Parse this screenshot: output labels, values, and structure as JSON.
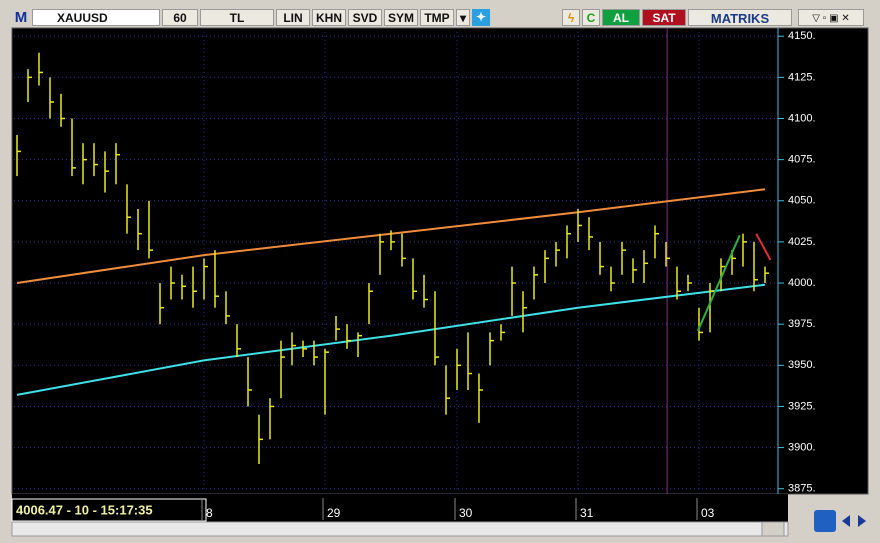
{
  "toolbar": {
    "logo": "M",
    "symbol": "XAUUSD",
    "period": "60",
    "currency": "TL",
    "buttons": [
      "LIN",
      "KHN",
      "SVD",
      "SYM",
      "TMP"
    ],
    "buy": "AL",
    "sell": "SAT",
    "brand": "MATRIKS"
  },
  "info": "4006.47 - 10 - 15:17:35",
  "chart_data": {
    "type": "hlc",
    "categories": [
      null,
      null,
      null,
      null,
      null,
      null,
      null,
      null,
      null,
      null,
      null,
      null,
      null,
      null,
      null,
      null,
      null,
      "8",
      null,
      null,
      null,
      null,
      null,
      null,
      null,
      null,
      null,
      null,
      "29",
      null,
      null,
      null,
      null,
      null,
      null,
      null,
      null,
      null,
      null,
      null,
      "30",
      null,
      null,
      null,
      null,
      null,
      null,
      null,
      null,
      null,
      null,
      "31",
      null,
      null,
      null,
      null,
      null,
      null,
      null,
      null,
      null,
      null,
      "03",
      null,
      null,
      null,
      null,
      null,
      null
    ],
    "high": [
      4090,
      4130,
      4140,
      4125,
      4115,
      4100,
      4085,
      4085,
      4080,
      4085,
      4060,
      4045,
      4050,
      4000,
      4010,
      4005,
      4010,
      4015,
      4020,
      3995,
      3975,
      3955,
      3920,
      3930,
      3965,
      3970,
      3965,
      3965,
      3960,
      3980,
      3975,
      3970,
      4000,
      4030,
      4032,
      4030,
      4015,
      4005,
      3995,
      3950,
      3960,
      3970,
      3945,
      3970,
      3975,
      4010,
      3995,
      4010,
      4020,
      4025,
      4035,
      4045,
      4040,
      4025,
      4010,
      4025,
      4015,
      4020,
      4035,
      4025,
      4010,
      4005,
      3985,
      4000,
      4015,
      4020,
      4030,
      4025,
      4010
    ],
    "low": [
      4065,
      4110,
      4120,
      4100,
      4095,
      4065,
      4060,
      4065,
      4055,
      4060,
      4030,
      4020,
      4015,
      3975,
      3990,
      3990,
      3985,
      3990,
      3985,
      3975,
      3955,
      3925,
      3890,
      3905,
      3930,
      3950,
      3955,
      3950,
      3920,
      3965,
      3960,
      3955,
      3975,
      4005,
      4020,
      4010,
      3990,
      3985,
      3950,
      3920,
      3935,
      3935,
      3915,
      3950,
      3965,
      3980,
      3970,
      3990,
      4000,
      4010,
      4015,
      4025,
      4020,
      4005,
      3995,
      4005,
      4000,
      4000,
      4015,
      4010,
      3990,
      3995,
      3965,
      3970,
      3995,
      4005,
      4010,
      3995,
      4000
    ],
    "close": [
      4080,
      4125,
      4128,
      4110,
      4100,
      4070,
      4075,
      4072,
      4068,
      4078,
      4040,
      4030,
      4020,
      3985,
      4000,
      3998,
      3995,
      4010,
      3992,
      3980,
      3960,
      3935,
      3905,
      3925,
      3955,
      3962,
      3960,
      3955,
      3958,
      3972,
      3965,
      3968,
      3995,
      4025,
      4025,
      4015,
      3995,
      3990,
      3955,
      3930,
      3950,
      3945,
      3935,
      3965,
      3970,
      4000,
      3985,
      4005,
      4015,
      4020,
      4030,
      4035,
      4028,
      4010,
      4000,
      4020,
      4008,
      4012,
      4030,
      4015,
      3995,
      4000,
      3970,
      3995,
      4010,
      4015,
      4025,
      4002,
      4006
    ],
    "color": "#e8e820",
    "overlays": [
      {
        "color": "#f08c3c",
        "x": [
          0,
          17,
          34,
          51,
          68
        ],
        "values": [
          4000,
          4017,
          4030,
          4043,
          4057
        ]
      },
      {
        "color": "#40e0e8",
        "x": [
          0,
          17,
          34,
          51,
          68
        ],
        "values": [
          3932,
          3953,
          3968,
          3985,
          3999
        ]
      }
    ],
    "drawings": [
      {
        "color": "#30b040",
        "x": [
          61.9,
          65.7
        ],
        "values": [
          3971,
          4029
        ]
      },
      {
        "color": "#e03030",
        "x": [
          67.2,
          68.5
        ],
        "values": [
          4030,
          4014
        ]
      }
    ],
    "cursor_x": 59.1,
    "ylim": [
      3873,
      4155
    ],
    "yticks": [
      {
        "value": 3875,
        "label": "3875."
      },
      {
        "value": 3900,
        "label": "3900."
      },
      {
        "value": 3925,
        "label": "3925."
      },
      {
        "value": 3950,
        "label": "3950."
      },
      {
        "value": 3975,
        "label": "3975."
      },
      {
        "value": 4000,
        "label": "4000."
      },
      {
        "value": 4025,
        "label": "4025."
      },
      {
        "value": 4050,
        "label": "4050."
      },
      {
        "value": 4075,
        "label": "4075."
      },
      {
        "value": 4100,
        "label": "4100."
      },
      {
        "value": 4125,
        "label": "4125."
      },
      {
        "value": 4150,
        "label": "4150."
      }
    ],
    "grid": true
  }
}
